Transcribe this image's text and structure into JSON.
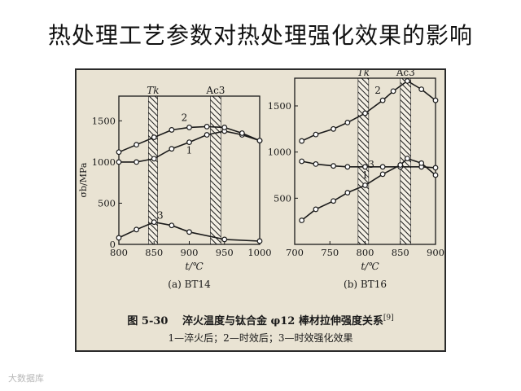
{
  "slide_title": "热处理工艺参数对热处理强化效果的影响",
  "figure": {
    "caption_number": "图 5-30",
    "caption_text": "淬火温度与钛合金 φ12 棒材拉伸强度关系",
    "caption_ref": "[9]",
    "legend_text": "1—淬火后；2—时效后；3—时效强化效果"
  },
  "watermark": "大数据库",
  "colors": {
    "ink": "#1a1a1a",
    "paper": "#e9e3d3",
    "hatch_bg": "#f3efe4"
  },
  "chart_data": [
    {
      "type": "line",
      "subtitle": "(a) BT14",
      "xlabel": "t/℃",
      "ylabel": "σb/MPa",
      "xlim": [
        800,
        1000
      ],
      "ylim": [
        0,
        1800
      ],
      "xticks": [
        800,
        850,
        900,
        950,
        1000
      ],
      "yticks": [
        0,
        500,
        1000,
        1500
      ],
      "grid": false,
      "bands": [
        {
          "label": "Tk",
          "x0": 842,
          "x1": 855
        },
        {
          "label": "Ac3",
          "x0": 930,
          "x1": 945
        }
      ],
      "series": [
        {
          "name": "1",
          "points": [
            [
              800,
              1000
            ],
            [
              825,
              1000
            ],
            [
              850,
              1040
            ],
            [
              875,
              1160
            ],
            [
              900,
              1240
            ],
            [
              925,
              1330
            ],
            [
              950,
              1375
            ],
            [
              975,
              1330
            ],
            [
              1000,
              1260
            ]
          ]
        },
        {
          "name": "2",
          "points": [
            [
              800,
              1120
            ],
            [
              825,
              1210
            ],
            [
              850,
              1300
            ],
            [
              875,
              1390
            ],
            [
              900,
              1420
            ],
            [
              925,
              1430
            ],
            [
              950,
              1420
            ],
            [
              975,
              1350
            ],
            [
              1000,
              1260
            ]
          ]
        },
        {
          "name": "3",
          "points": [
            [
              800,
              80
            ],
            [
              825,
              180
            ],
            [
              850,
              270
            ],
            [
              875,
              230
            ],
            [
              900,
              150
            ],
            [
              950,
              60
            ],
            [
              1000,
              40
            ]
          ]
        }
      ]
    },
    {
      "type": "line",
      "subtitle": "(b) BT16",
      "xlabel": "t/℃",
      "ylabel": "",
      "xlim": [
        700,
        900
      ],
      "ylim": [
        0,
        1800
      ],
      "xticks": [
        700,
        750,
        800,
        850,
        900
      ],
      "yticks": [
        500,
        1000,
        1500
      ],
      "grid": false,
      "bands": [
        {
          "label": "Tk",
          "x0": 790,
          "x1": 805
        },
        {
          "label": "Ac3",
          "x0": 850,
          "x1": 865
        }
      ],
      "series": [
        {
          "name": "2",
          "points": [
            [
              710,
              1120
            ],
            [
              730,
              1190
            ],
            [
              755,
              1250
            ],
            [
              775,
              1320
            ],
            [
              800,
              1420
            ],
            [
              825,
              1560
            ],
            [
              840,
              1660
            ],
            [
              860,
              1770
            ],
            [
              880,
              1680
            ],
            [
              900,
              1560
            ]
          ]
        },
        {
          "name": "1",
          "points": [
            [
              710,
              900
            ],
            [
              730,
              870
            ],
            [
              755,
              850
            ],
            [
              775,
              840
            ],
            [
              800,
              840
            ],
            [
              825,
              840
            ],
            [
              850,
              840
            ],
            [
              880,
              840
            ],
            [
              900,
              830
            ]
          ]
        },
        {
          "name": "3",
          "points": [
            [
              710,
              260
            ],
            [
              730,
              380
            ],
            [
              755,
              470
            ],
            [
              775,
              560
            ],
            [
              800,
              640
            ],
            [
              825,
              760
            ],
            [
              850,
              860
            ],
            [
              860,
              930
            ],
            [
              880,
              880
            ],
            [
              900,
              750
            ]
          ]
        }
      ]
    }
  ]
}
